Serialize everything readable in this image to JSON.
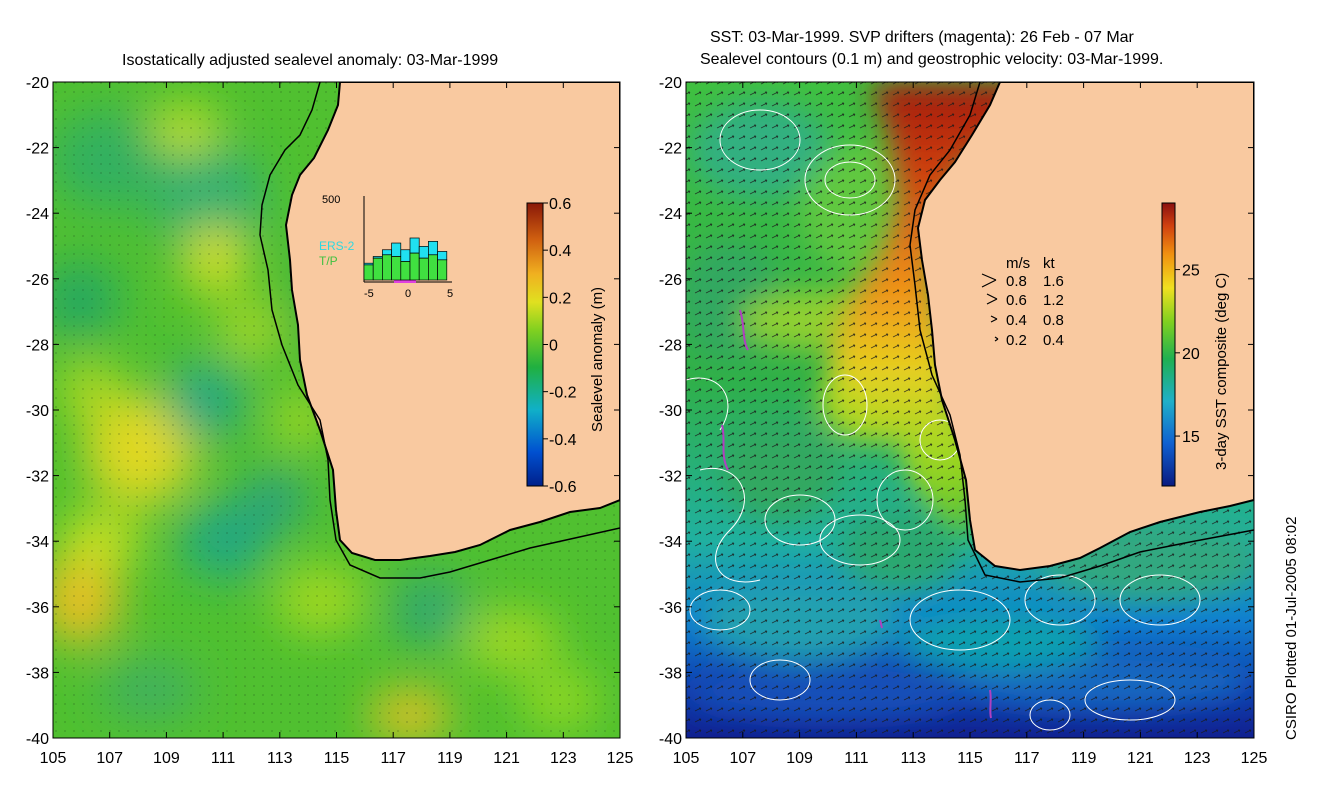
{
  "colors": {
    "land": "#f9c9a0",
    "coast": "#000000",
    "contour": "#ffffff",
    "drifter": "#b040c0",
    "ers2": "#30d8e0",
    "tp": "#40c040",
    "hist_fill_tp": "#40e040",
    "hist_fill_ers": "#20e0f0"
  },
  "stamp": "CSIRO Plotted 01-Jul-2005 08:02",
  "chart_data": [
    {
      "id": "sla",
      "type": "heatmap",
      "title": "Isostatically adjusted sealevel anomaly: 03-Mar-1999",
      "x_ticks": [
        105,
        107,
        109,
        111,
        113,
        115,
        117,
        119,
        121,
        123,
        125
      ],
      "y_ticks": [
        -20,
        -22,
        -24,
        -26,
        -28,
        -30,
        -32,
        -34,
        -36,
        -38,
        -40
      ],
      "xlim": [
        105,
        125
      ],
      "ylim": [
        -40,
        -20
      ],
      "colorbar": {
        "label": "Sealevel anomaly (m)",
        "range": [
          -0.6,
          0.6
        ],
        "ticks": [
          "0.6",
          "0.4",
          "0.2",
          "0",
          "-0.2",
          "-0.4",
          "-0.6"
        ]
      },
      "inset_histogram": {
        "y_label": "500",
        "x_ticks": [
          "-5",
          "0",
          "5"
        ],
        "legend": [
          "ERS-2",
          "T/P"
        ],
        "days": [
          -5,
          -4,
          -3,
          -2,
          -1,
          0,
          1,
          2,
          3
        ],
        "tp_counts": [
          90,
          130,
          150,
          140,
          110,
          160,
          130,
          150,
          120
        ],
        "ers2_counts": [
          100,
          140,
          180,
          220,
          180,
          250,
          200,
          230,
          170
        ]
      }
    },
    {
      "id": "sst",
      "type": "heatmap",
      "title_line1": "SST: 03-Mar-1999. SVP drifters (magenta): 26 Feb - 07 Mar",
      "title_line2": "Sealevel contours (0.1 m) and geostrophic velocity: 03-Mar-1999.",
      "x_ticks": [
        105,
        107,
        109,
        111,
        113,
        115,
        117,
        119,
        121,
        123,
        125
      ],
      "y_ticks": [
        -20,
        -22,
        -24,
        -26,
        -28,
        -30,
        -32,
        -34,
        -36,
        -38,
        -40
      ],
      "xlim": [
        105,
        125
      ],
      "ylim": [
        -40,
        -20
      ],
      "colorbar": {
        "label": "3-day SST composite (deg C)",
        "range": [
          12,
          29
        ],
        "ticks": [
          "25",
          "20",
          "15"
        ]
      },
      "velocity_legend": {
        "header_ms": "m/s",
        "header_kt": "kt",
        "rows": [
          {
            "ms": "0.8",
            "kt": "1.6"
          },
          {
            "ms": "0.6",
            "kt": "1.2"
          },
          {
            "ms": "0.4",
            "kt": "0.8"
          },
          {
            "ms": "0.2",
            "kt": "0.4"
          }
        ]
      }
    }
  ]
}
